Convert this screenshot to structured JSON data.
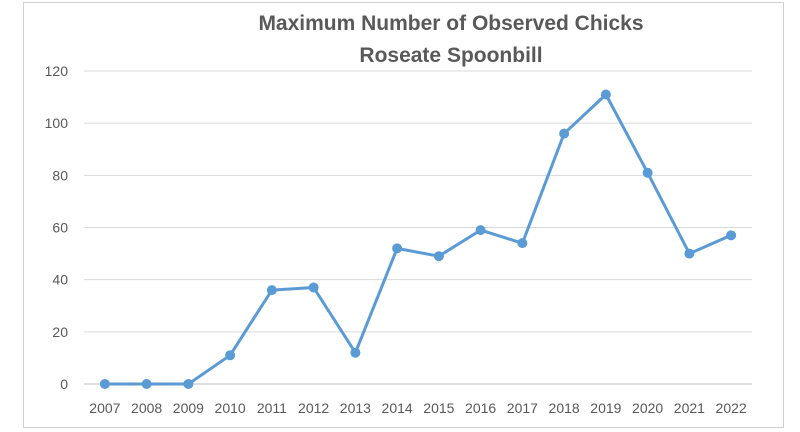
{
  "chart_data": {
    "type": "line",
    "title": "Maximum Number of Observed Chicks",
    "subtitle": "Roseate Spoonbill",
    "xlabel": "",
    "ylabel": "",
    "x": [
      "2007",
      "2008",
      "2009",
      "2010",
      "2011",
      "2012",
      "2013",
      "2014",
      "2015",
      "2016",
      "2017",
      "2018",
      "2019",
      "2020",
      "2021",
      "2022"
    ],
    "series": [
      {
        "values": [
          0,
          0,
          0,
          11,
          36,
          37,
          12,
          52,
          49,
          59,
          54,
          96,
          111,
          81,
          50,
          57
        ],
        "color": "#5b9bd5"
      }
    ],
    "ylim": [
      0,
      120
    ],
    "yticks": [
      0,
      20,
      40,
      60,
      80,
      100,
      120
    ],
    "grid": "horizontal",
    "legend": "none",
    "colors": {
      "line": "#5b9bd5",
      "grid": "#d9d9d9",
      "axis": "#bfbfbf",
      "text": "#595959"
    }
  }
}
